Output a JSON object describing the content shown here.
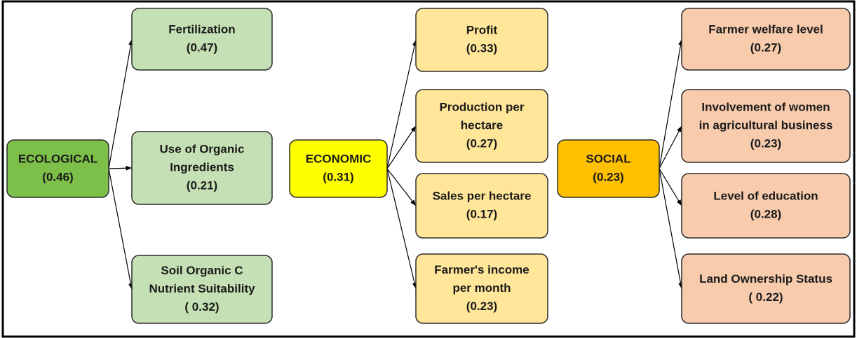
{
  "groups": [
    {
      "main": {
        "lines": [
          "ECOLOGICAL",
          "(0.46)"
        ]
      },
      "children": [
        {
          "lines": [
            "Fertilization",
            "(0.47)"
          ]
        },
        {
          "lines": [
            "Use of Organic",
            "Ingredients",
            "(0.21)"
          ]
        },
        {
          "lines": [
            "Soil Organic C",
            "Nutrient Suitability",
            "( 0.32)"
          ]
        }
      ]
    },
    {
      "main": {
        "lines": [
          "ECONOMIC",
          "(0.31)"
        ]
      },
      "children": [
        {
          "lines": [
            "Profit",
            "(0.33)"
          ]
        },
        {
          "lines": [
            "Production per",
            "hectare",
            "(0.27)"
          ]
        },
        {
          "lines": [
            "Sales per hectare",
            "(0.17)"
          ]
        },
        {
          "lines": [
            "Farmer's income",
            "per month",
            "(0.23)"
          ]
        }
      ]
    },
    {
      "main": {
        "lines": [
          "SOCIAL",
          "(0.23)"
        ]
      },
      "children": [
        {
          "lines": [
            "Farmer welfare level",
            "(0.27)"
          ]
        },
        {
          "lines": [
            "Involvement of women",
            "in agricultural business",
            "(0.23)"
          ]
        },
        {
          "lines": [
            "Level of education",
            "(0.28)"
          ]
        },
        {
          "lines": [
            "Land Ownership Status",
            "( 0.22)"
          ]
        }
      ]
    }
  ]
}
